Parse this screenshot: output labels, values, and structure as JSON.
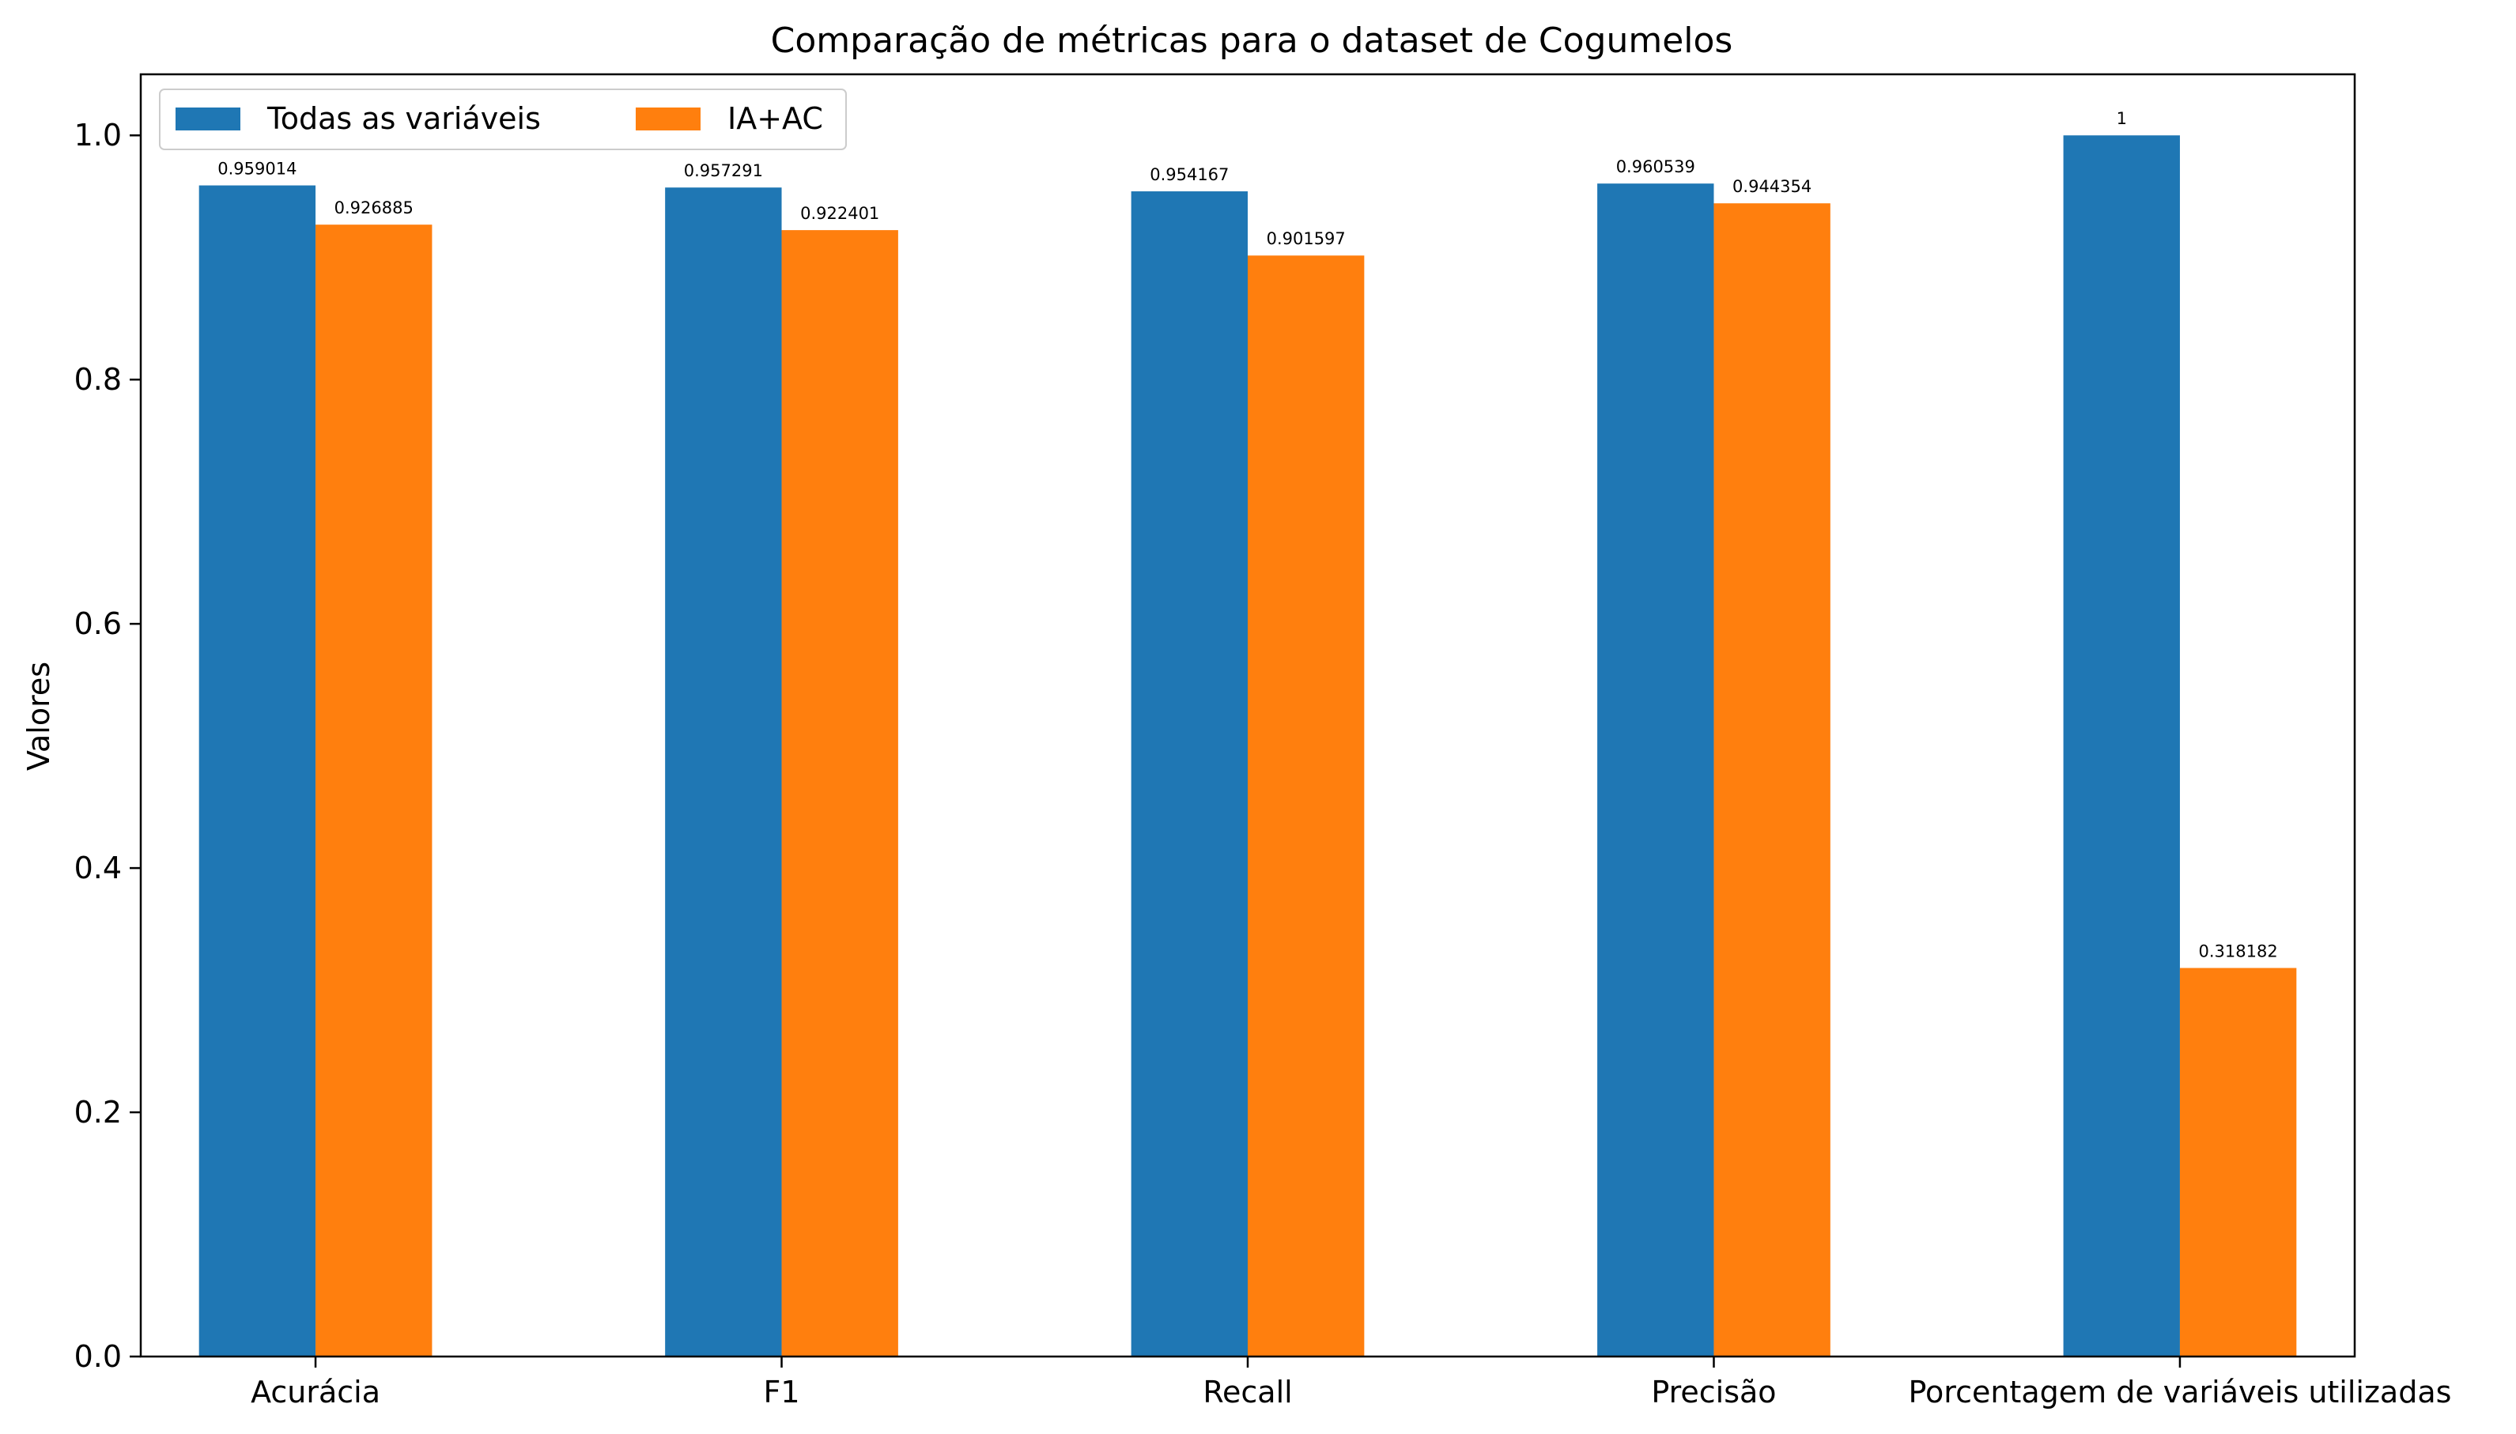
{
  "chart_data": {
    "type": "bar",
    "title": "Comparação de métricas para o dataset de Cogumelos",
    "xlabel": "",
    "ylabel": "Valores",
    "categories": [
      "Acurácia",
      "F1",
      "Recall",
      "Precisão",
      "Porcentagem de variáveis utilizadas"
    ],
    "series": [
      {
        "name": "Todas as variáveis",
        "color": "#1f77b4",
        "values": [
          0.959014,
          0.957291,
          0.954167,
          0.960539,
          1
        ],
        "labels": [
          "0.959014",
          "0.957291",
          "0.954167",
          "0.960539",
          "1"
        ]
      },
      {
        "name": "IA+AC",
        "color": "#ff7f0e",
        "values": [
          0.926885,
          0.922401,
          0.901597,
          0.944354,
          0.318182
        ],
        "labels": [
          "0.926885",
          "0.922401",
          "0.901597",
          "0.944354",
          "0.318182"
        ]
      }
    ],
    "ylim": [
      0,
      1.05
    ],
    "yticks": [
      "0.0",
      "0.2",
      "0.4",
      "0.6",
      "0.8",
      "1.0"
    ],
    "grid": false,
    "legend_position": "top-left"
  }
}
